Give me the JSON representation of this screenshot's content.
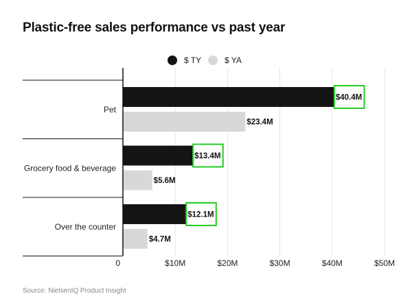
{
  "title": "Plastic-free sales performance vs past year",
  "source": "Source: NielsenIQ Product Insight",
  "colors": {
    "ty": "#141414",
    "ya": "#d8d8d8",
    "highlight": "#22cc22",
    "grid": "#e4e4e4"
  },
  "chart_data": {
    "type": "bar",
    "orientation": "horizontal",
    "categories": [
      "Pet",
      "Grocery food & beverage",
      "Over the counter"
    ],
    "series": [
      {
        "name": "$ TY",
        "values": [
          40.4,
          13.4,
          12.1
        ],
        "labels": [
          "$40.4M",
          "$13.4M",
          "$12.1M"
        ],
        "highlighted": true
      },
      {
        "name": "$ YA",
        "values": [
          23.4,
          5.6,
          4.7
        ],
        "labels": [
          "$23.4M",
          "$5.6M",
          "$4.7M"
        ],
        "highlighted": false
      }
    ],
    "xticks": [
      0,
      10,
      20,
      30,
      40,
      50
    ],
    "xtick_labels": [
      "0",
      "$10M",
      "$20M",
      "$30M",
      "$40M",
      "$50M"
    ],
    "xlim": [
      0,
      50
    ],
    "grid": true,
    "legend_position": "top-center"
  }
}
